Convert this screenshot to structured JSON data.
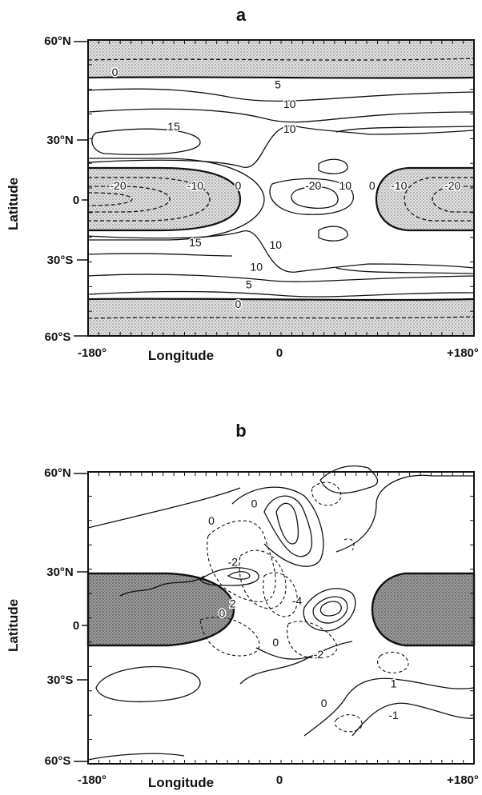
{
  "chart_data": [
    {
      "type": "contour",
      "panel_label": "a",
      "xlabel": "Longitude",
      "ylabel": "Latitude",
      "x_ticks": [
        "-180°",
        "0",
        "+180°"
      ],
      "y_ticks": [
        "60°N",
        "30°N",
        "0",
        "30°S",
        "60°S"
      ],
      "xlim": [
        -180,
        180
      ],
      "ylim": [
        -60,
        60
      ],
      "shading": "negative values stippled",
      "contour_labels": [
        {
          "text": "0",
          "lon": -155,
          "lat": 47
        },
        {
          "text": "5",
          "lon": -3,
          "lat": 42
        },
        {
          "text": "10",
          "lon": 8,
          "lat": 34
        },
        {
          "text": "15",
          "lon": -100,
          "lat": 25
        },
        {
          "text": "10",
          "lon": 8,
          "lat": 24
        },
        {
          "text": "-20",
          "lon": -152,
          "lat": 1
        },
        {
          "text": "-10",
          "lon": -80,
          "lat": 1
        },
        {
          "text": "0",
          "lon": -40,
          "lat": 1
        },
        {
          "text": "-20",
          "lon": 30,
          "lat": 1
        },
        {
          "text": "10",
          "lon": 60,
          "lat": 1
        },
        {
          "text": "0",
          "lon": 85,
          "lat": 1
        },
        {
          "text": "-10",
          "lon": 110,
          "lat": 1
        },
        {
          "text": "-20",
          "lon": 160,
          "lat": 1
        },
        {
          "text": "15",
          "lon": -80,
          "lat": -22
        },
        {
          "text": "10",
          "lon": -5,
          "lat": -23
        },
        {
          "text": "10",
          "lon": -23,
          "lat": -32
        },
        {
          "text": "5",
          "lon": -30,
          "lat": -39
        },
        {
          "text": "0",
          "lon": -40,
          "lat": -47
        }
      ]
    },
    {
      "type": "contour",
      "panel_label": "b",
      "xlabel": "Longitude",
      "ylabel": "Latitude",
      "x_ticks": [
        "-180°",
        "0",
        "+180°"
      ],
      "y_ticks": [
        "60°N",
        "30°N",
        "0",
        "30°S",
        "60°S"
      ],
      "xlim": [
        -180,
        180
      ],
      "ylim": [
        -60,
        60
      ],
      "shading": "heated regions shaded",
      "contour_labels": [
        {
          "text": "0",
          "lon": -25,
          "lat": 47
        },
        {
          "text": "0",
          "lon": -65,
          "lat": 40
        },
        {
          "text": "-2",
          "lon": -45,
          "lat": 23
        },
        {
          "text": "-4",
          "lon": 15,
          "lat": 7
        },
        {
          "text": "2",
          "lon": -45,
          "lat": 6
        },
        {
          "text": "0",
          "lon": -55,
          "lat": 2
        },
        {
          "text": "0",
          "lon": -5,
          "lat": -10
        },
        {
          "text": "-2",
          "lon": 35,
          "lat": -15
        },
        {
          "text": "1",
          "lon": 105,
          "lat": -27
        },
        {
          "text": "0",
          "lon": 40,
          "lat": -35
        },
        {
          "text": "-1",
          "lon": 105,
          "lat": -40
        }
      ]
    }
  ]
}
